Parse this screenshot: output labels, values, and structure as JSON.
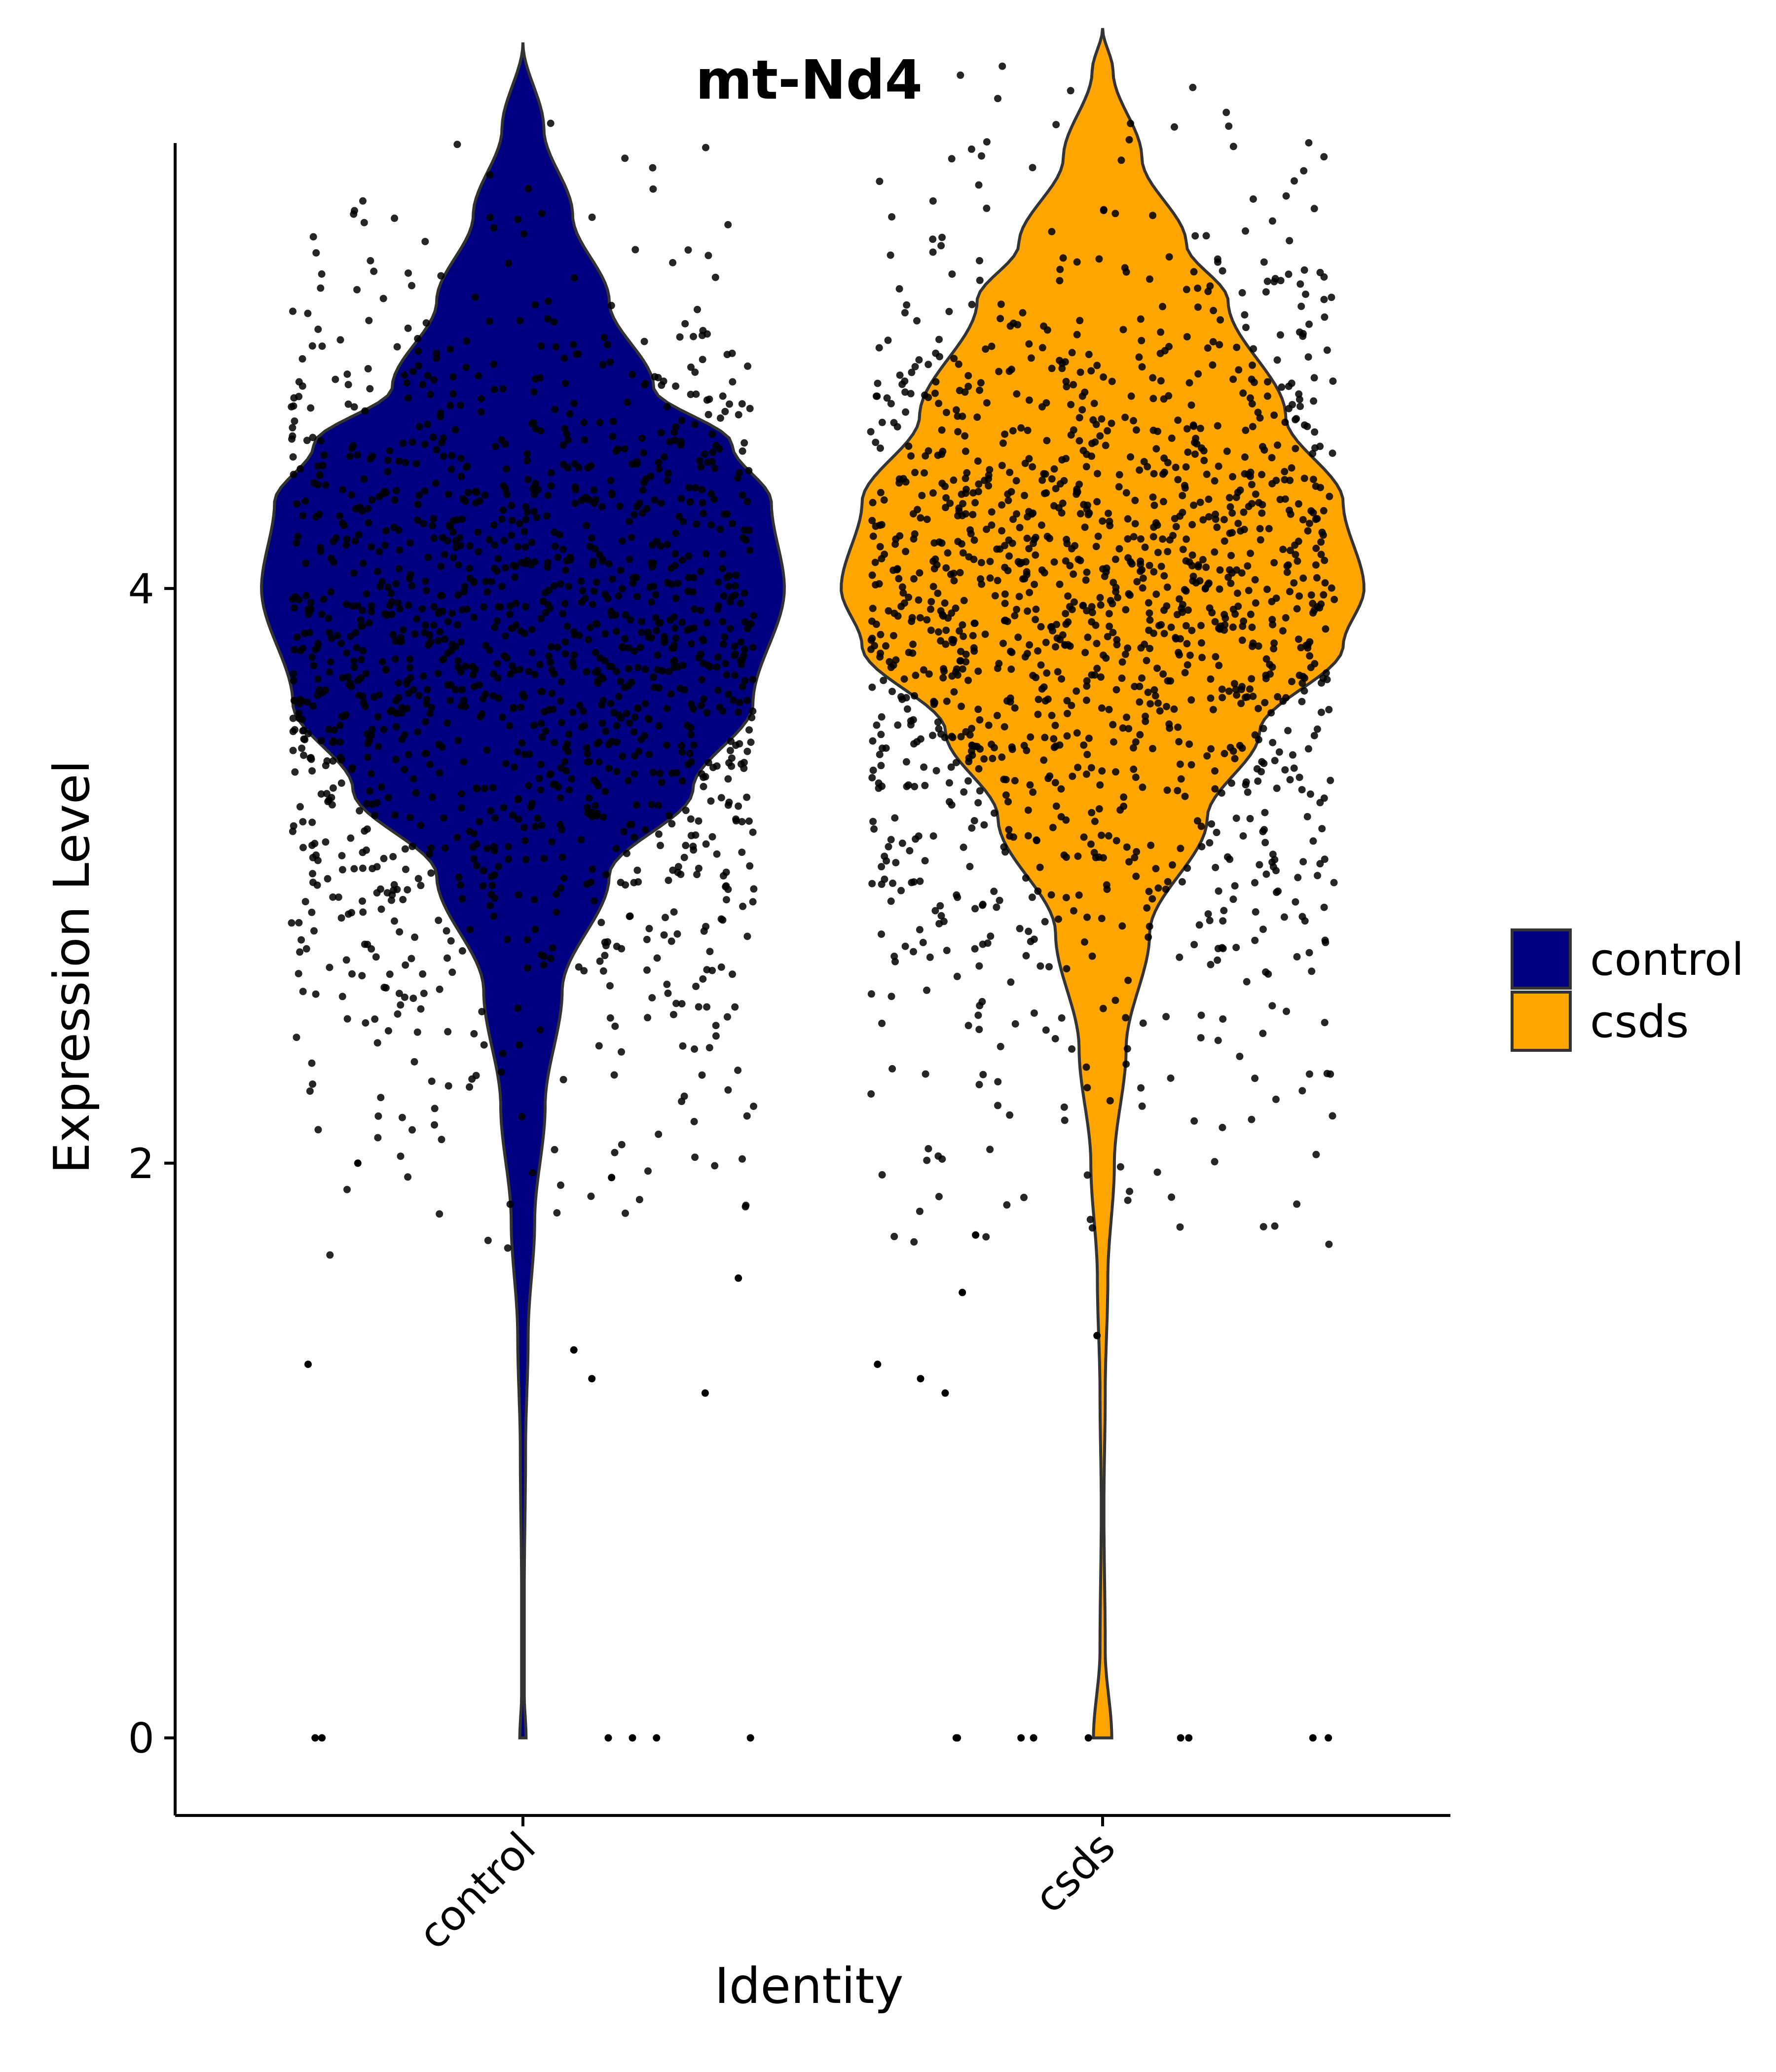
{
  "chart_data": {
    "type": "violin",
    "title": "mt-Nd4",
    "xlabel": "Identity",
    "ylabel": "Expression Level",
    "categories": [
      "control",
      "csds"
    ],
    "y_ticks": [
      0,
      2,
      4
    ],
    "ylim": [
      -0.27,
      5.55
    ],
    "legend": {
      "placement": "right",
      "entries": [
        {
          "label": "control",
          "color": "#000080"
        },
        {
          "label": "csds",
          "color": "#FFA500"
        }
      ]
    },
    "series": [
      {
        "name": "control",
        "color": "#000080",
        "y_max": 5.9,
        "y_min": 0,
        "density_profile": [
          [
            0.0,
            0.012
          ],
          [
            0.15,
            0.005
          ],
          [
            0.5,
            0.005
          ],
          [
            1.0,
            0.01
          ],
          [
            1.4,
            0.02
          ],
          [
            1.8,
            0.045
          ],
          [
            2.2,
            0.085
          ],
          [
            2.6,
            0.15
          ],
          [
            3.0,
            0.33
          ],
          [
            3.3,
            0.65
          ],
          [
            3.6,
            0.88
          ],
          [
            4.0,
            1.0
          ],
          [
            4.3,
            0.95
          ],
          [
            4.5,
            0.8
          ],
          [
            4.7,
            0.5
          ],
          [
            5.0,
            0.33
          ],
          [
            5.3,
            0.19
          ],
          [
            5.6,
            0.08
          ],
          [
            5.9,
            0.0
          ]
        ],
        "points_spread": {
          "median_region": [
            2.8,
            4.8
          ],
          "low_outliers": [
            2.0,
            1.95,
            1.6,
            1.35,
            1.3,
            1.25,
            1.2
          ],
          "zero_points": 6
        }
      },
      {
        "name": "csds",
        "color": "#FFA500",
        "y_max": 5.95,
        "y_min": 0,
        "density_profile": [
          [
            0.0,
            0.035
          ],
          [
            0.3,
            0.01
          ],
          [
            0.8,
            0.005
          ],
          [
            1.2,
            0.01
          ],
          [
            1.6,
            0.02
          ],
          [
            2.0,
            0.045
          ],
          [
            2.4,
            0.09
          ],
          [
            2.8,
            0.18
          ],
          [
            3.2,
            0.4
          ],
          [
            3.5,
            0.6
          ],
          [
            3.8,
            0.92
          ],
          [
            4.0,
            1.0
          ],
          [
            4.3,
            0.92
          ],
          [
            4.6,
            0.7
          ],
          [
            5.0,
            0.48
          ],
          [
            5.2,
            0.32
          ],
          [
            5.5,
            0.15
          ],
          [
            5.8,
            0.04
          ],
          [
            5.95,
            0.0
          ]
        ],
        "points_spread": {
          "median_region": [
            3.0,
            5.0
          ],
          "low_outliers": [
            1.75,
            1.55,
            1.4,
            1.3,
            1.25,
            1.2
          ],
          "zero_points": 9
        }
      }
    ]
  }
}
